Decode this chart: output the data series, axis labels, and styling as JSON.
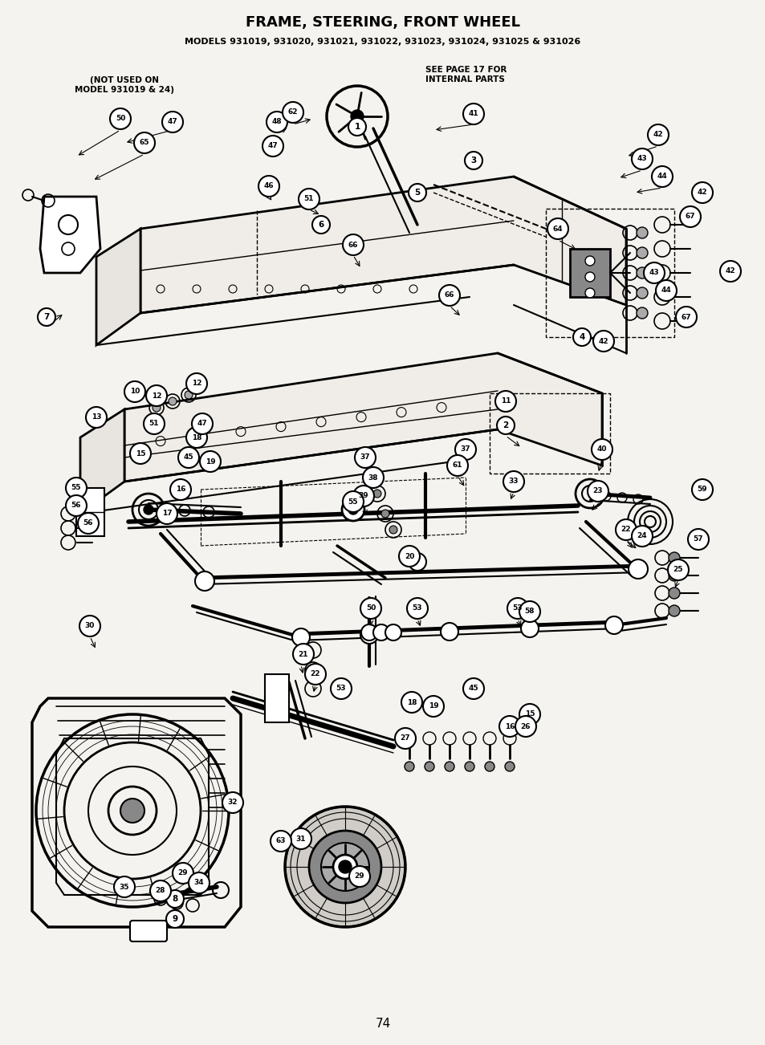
{
  "title": "FRAME, STEERING, FRONT WHEEL",
  "subtitle": "MODELS 931019, 931020, 931021, 931022, 931023, 931024, 931025 & 931026",
  "page_number": "74",
  "bg_color": "#f5f3ef",
  "note1": "(NOT USED ON\nMODEL 931019 & 24)",
  "note2": "SEE PAGE 17 FOR\nINTERNAL PARTS",
  "fig_width": 9.54,
  "fig_height": 13.02,
  "dpi": 100
}
